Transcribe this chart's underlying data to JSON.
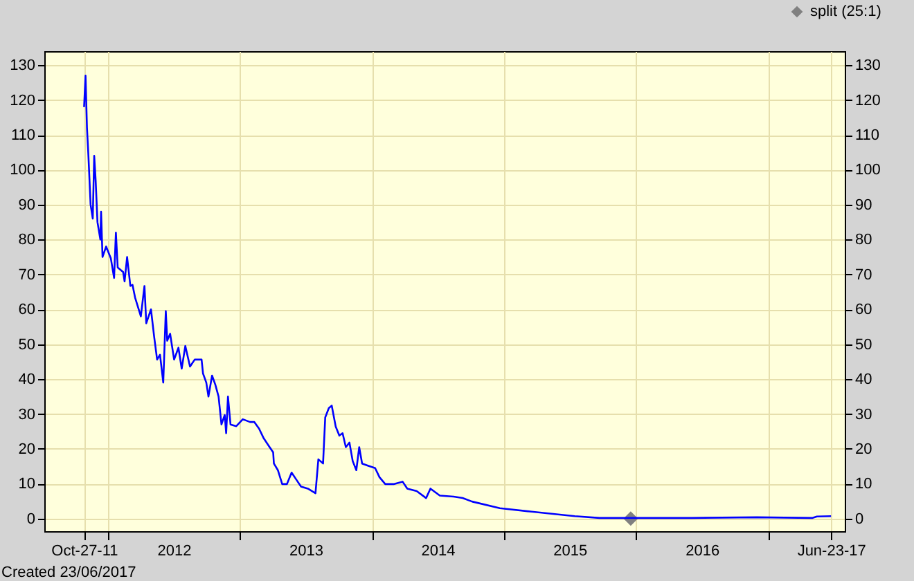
{
  "chart_data": {
    "type": "line",
    "x": [
      "2011-10-27",
      "2011-10-31",
      "2011-11-04",
      "2011-11-08",
      "2011-11-14",
      "2011-11-20",
      "2011-11-24",
      "2011-11-28",
      "2011-12-03",
      "2011-12-11",
      "2011-12-13",
      "2011-12-17",
      "2011-12-27",
      "2012-01-09",
      "2012-01-18",
      "2012-01-23",
      "2012-01-28",
      "2012-02-12",
      "2012-02-16",
      "2012-02-23",
      "2012-03-03",
      "2012-03-09",
      "2012-03-16",
      "2012-03-26",
      "2012-04-01",
      "2012-04-11",
      "2012-04-16",
      "2012-04-29",
      "2012-05-08",
      "2012-05-16",
      "2012-05-24",
      "2012-06-02",
      "2012-06-09",
      "2012-06-13",
      "2012-06-21",
      "2012-07-02",
      "2012-07-14",
      "2012-07-23",
      "2012-08-02",
      "2012-08-15",
      "2012-08-28",
      "2012-09-16",
      "2012-09-20",
      "2012-09-29",
      "2012-10-05",
      "2012-10-15",
      "2012-10-24",
      "2012-11-02",
      "2012-11-10",
      "2012-11-19",
      "2012-11-23",
      "2012-11-28",
      "2012-12-05",
      "2012-12-21",
      "2013-01-08",
      "2013-01-28",
      "2013-02-09",
      "2013-02-22",
      "2013-03-07",
      "2013-03-20",
      "2013-04-02",
      "2013-04-04",
      "2013-04-15",
      "2013-04-27",
      "2013-05-10",
      "2013-05-23",
      "2013-06-05",
      "2013-06-18",
      "2013-07-07",
      "2013-07-28",
      "2013-08-05",
      "2013-08-18",
      "2013-08-24",
      "2013-09-03",
      "2013-09-11",
      "2013-09-22",
      "2013-10-02",
      "2013-10-11",
      "2013-10-20",
      "2013-10-30",
      "2013-11-08",
      "2013-11-18",
      "2013-11-26",
      "2013-12-04",
      "2013-12-20",
      "2014-01-09",
      "2014-01-21",
      "2014-02-06",
      "2014-03-01",
      "2014-03-26",
      "2014-04-08",
      "2014-05-04",
      "2014-05-30",
      "2014-06-11",
      "2014-07-07",
      "2014-08-14",
      "2014-09-08",
      "2014-10-04",
      "2014-12-20",
      "2015-03-18",
      "2015-07-15",
      "2015-09-22",
      "2016-06-03",
      "2016-11-30",
      "2017-05-03",
      "2017-05-15",
      "2017-06-23"
    ],
    "series": [
      {
        "type": "scatter",
        "name": "split (25:1)",
        "color": "#808080",
        "marker": "diamond",
        "axis": "y2",
        "x": [
          "2015-12-17"
        ],
        "values": [
          0
        ]
      },
      {
        "color": "#0000ff",
        "values": [
          118,
          127,
          112,
          104,
          90,
          86,
          104,
          97,
          85,
          80,
          88,
          75,
          78,
          74.6,
          69,
          82,
          72,
          70.7,
          68,
          75,
          66.7,
          67,
          63.4,
          60,
          58,
          66.7,
          56,
          60,
          52,
          45.6,
          47,
          39,
          59.5,
          51,
          53,
          45.6,
          49,
          43,
          49.5,
          43.6,
          45.6,
          45.6,
          41.6,
          39,
          35,
          41,
          38.4,
          35,
          27,
          29.7,
          24.5,
          35,
          27,
          26.5,
          28.5,
          27.7,
          27.7,
          25.8,
          23,
          21,
          19,
          15.8,
          13.9,
          9.9,
          9.9,
          13.2,
          11.2,
          9.2,
          8.6,
          7.3,
          17,
          15.8,
          29,
          31.7,
          32.4,
          26.4,
          23.8,
          24.5,
          20.5,
          21.8,
          16.5,
          13.9,
          20.5,
          15.8,
          15.2,
          14.5,
          11.9,
          9.9,
          9.9,
          10.6,
          8.6,
          7.9,
          5.9,
          8.6,
          6.6,
          6.3,
          5.9,
          4.9,
          3,
          2,
          0.7,
          0.2,
          0.2,
          0.4,
          0.2,
          0.6,
          0.7
        ]
      }
    ],
    "xlim": [
      "2011-07-09",
      "2017-07-31"
    ],
    "xticks": [
      {
        "value": "2011-10-27",
        "label": "Oct-27-11"
      },
      {
        "value": "2012-01-01",
        "label": null
      },
      {
        "value": "2012-07-01",
        "label": "2012"
      },
      {
        "value": "2013-01-01",
        "label": null
      },
      {
        "value": "2013-07-01",
        "label": "2013"
      },
      {
        "value": "2014-01-01",
        "label": null
      },
      {
        "value": "2014-07-01",
        "label": "2014"
      },
      {
        "value": "2015-01-01",
        "label": null
      },
      {
        "value": "2015-07-01",
        "label": "2015"
      },
      {
        "value": "2016-01-01",
        "label": null
      },
      {
        "value": "2016-07-01",
        "label": "2016"
      },
      {
        "value": "2017-01-01",
        "label": null
      },
      {
        "value": "2017-06-23",
        "label": "Jun-23-17"
      }
    ],
    "ylim": [
      -3.6,
      134
    ],
    "yticks": [
      0,
      10,
      20,
      30,
      40,
      50,
      60,
      70,
      80,
      90,
      100,
      110,
      120,
      130
    ],
    "y2lim": [
      -3.6,
      134
    ],
    "y2ticks": [
      0,
      10,
      20,
      30,
      40,
      50,
      60,
      70,
      80,
      90,
      100,
      110,
      120,
      130
    ],
    "grid": true,
    "legend": "top right",
    "annotations": [
      "Created 23/06/2017"
    ]
  }
}
